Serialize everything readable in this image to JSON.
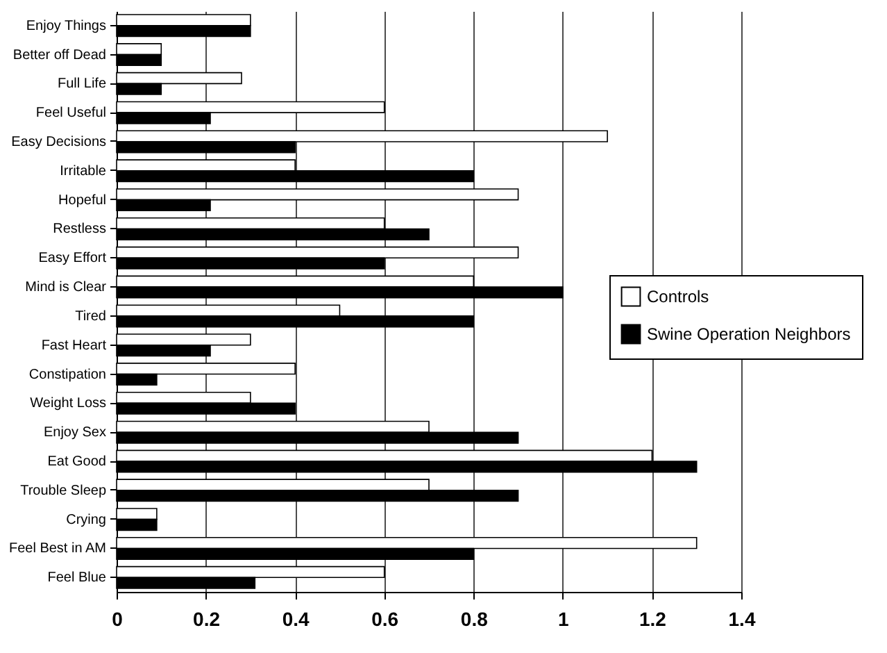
{
  "chart_data": {
    "type": "bar",
    "orientation": "horizontal",
    "categories": [
      "Enjoy Things",
      "Better off Dead",
      "Full Life",
      "Feel Useful",
      "Easy Decisions",
      "Irritable",
      "Hopeful",
      "Restless",
      "Easy Effort",
      "Mind is Clear",
      "Tired",
      "Fast Heart",
      "Constipation",
      "Weight Loss",
      "Enjoy Sex",
      "Eat Good",
      "Trouble Sleep",
      "Crying",
      "Feel Best in AM",
      "Feel Blue"
    ],
    "series": [
      {
        "name": "Controls",
        "color": "#ffffff",
        "values": [
          0.3,
          0.1,
          0.28,
          0.6,
          1.1,
          0.4,
          0.9,
          0.6,
          0.9,
          0.8,
          0.5,
          0.3,
          0.4,
          0.3,
          0.7,
          1.2,
          0.7,
          0.09,
          1.3,
          0.6
        ]
      },
      {
        "name": "Swine Operation Neighbors",
        "color": "#000000",
        "values": [
          0.3,
          0.1,
          0.1,
          0.21,
          0.4,
          0.8,
          0.21,
          0.7,
          0.6,
          1.0,
          0.8,
          0.21,
          0.09,
          0.4,
          0.9,
          1.3,
          0.9,
          0.09,
          0.8,
          0.31
        ]
      }
    ],
    "xlim": [
      0,
      1.4
    ],
    "xticks": [
      0,
      0.2,
      0.4,
      0.6,
      0.8,
      1,
      1.2,
      1.4
    ],
    "grid": "x",
    "legend": "right"
  }
}
